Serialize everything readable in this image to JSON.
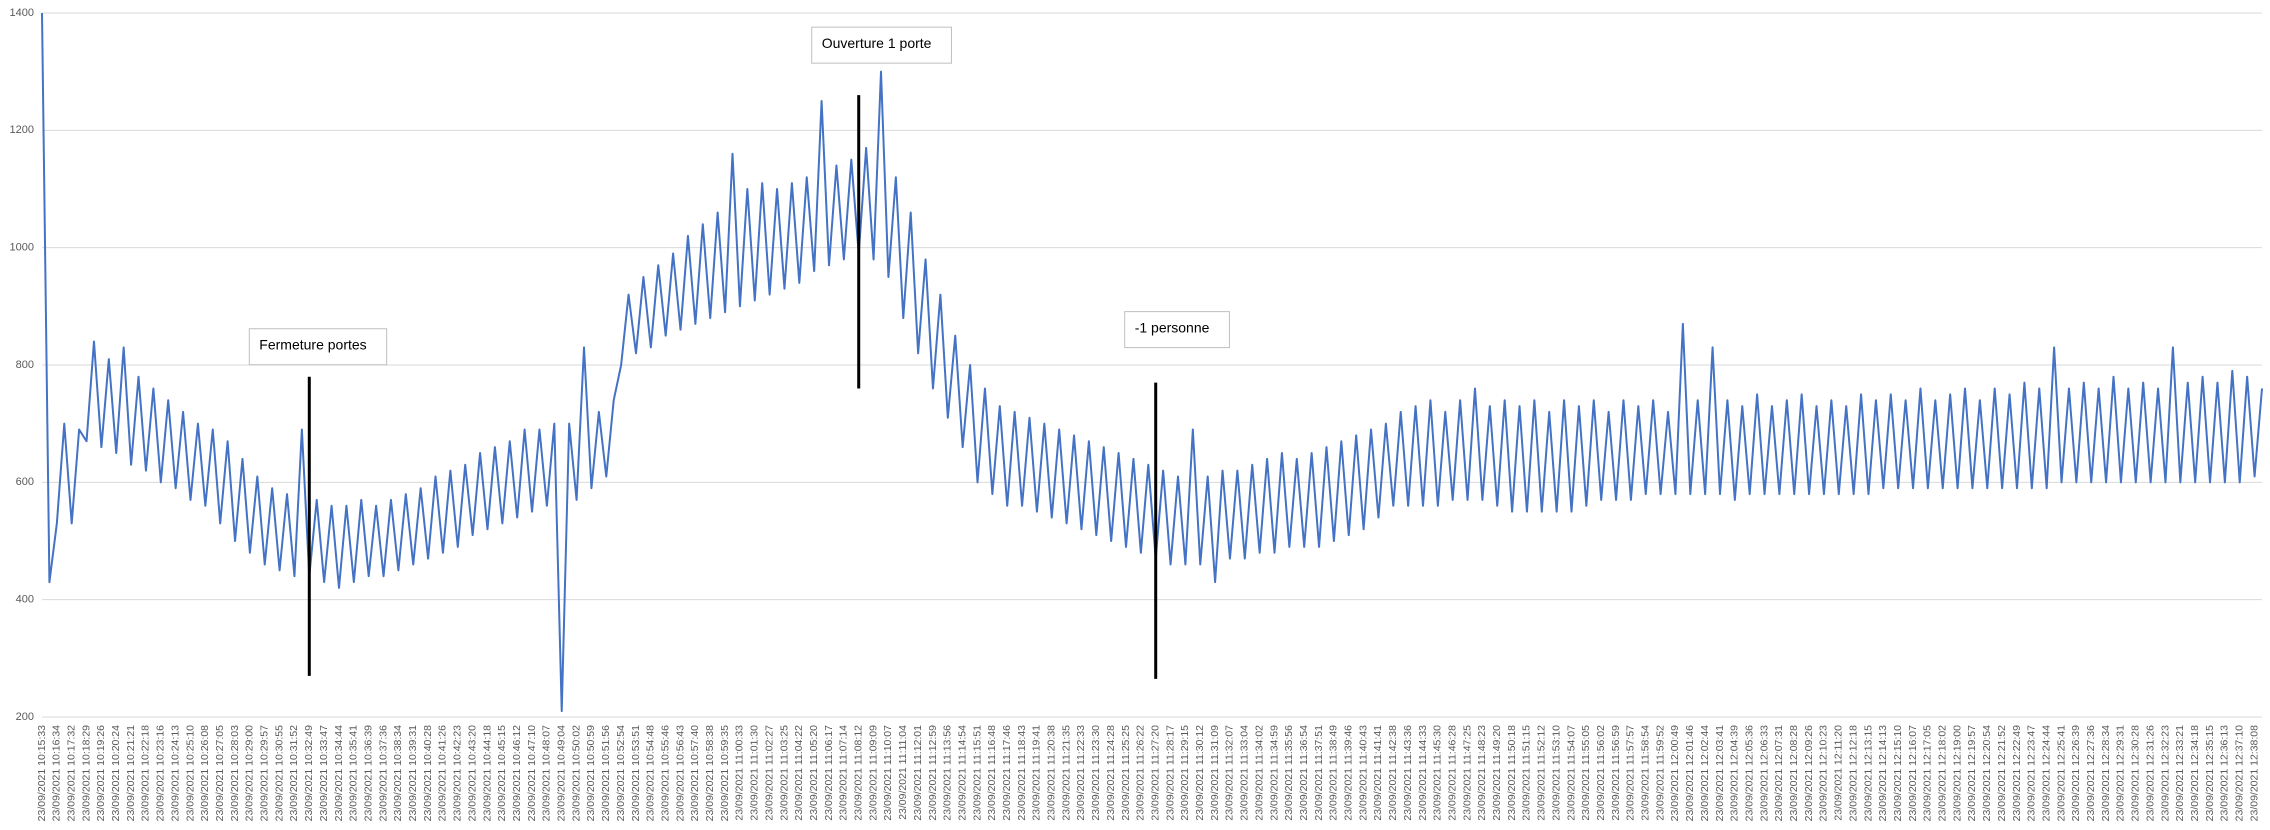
{
  "chart_data": {
    "type": "line",
    "categories": [
      "23/09/2021 10:15:33",
      null,
      "23/09/2021 10:16:34",
      null,
      "23/09/2021 10:17:32",
      null,
      "23/09/2021 10:18:29",
      null,
      "23/09/2021 10:19:26",
      null,
      "23/09/2021 10:20:24",
      null,
      "23/09/2021 10:21:21",
      null,
      "23/09/2021 10:22:18",
      null,
      "23/09/2021 10:23:16",
      null,
      "23/09/2021 10:24:13",
      null,
      "23/09/2021 10:25:10",
      null,
      "23/09/2021 10:26:08",
      null,
      "23/09/2021 10:27:05",
      null,
      "23/09/2021 10:28:03",
      null,
      "23/09/2021 10:29:00",
      null,
      "23/09/2021 10:29:57",
      null,
      "23/09/2021 10:30:55",
      null,
      "23/09/2021 10:31:52",
      null,
      "23/09/2021 10:32:49",
      null,
      "23/09/2021 10:33:47",
      null,
      "23/09/2021 10:34:44",
      null,
      "23/09/2021 10:35:41",
      null,
      "23/09/2021 10:36:39",
      null,
      "23/09/2021 10:37:36",
      null,
      "23/09/2021 10:38:34",
      null,
      "23/09/2021 10:39:31",
      null,
      "23/09/2021 10:40:28",
      null,
      "23/09/2021 10:41:26",
      null,
      "23/09/2021 10:42:23",
      null,
      "23/09/2021 10:43:20",
      null,
      "23/09/2021 10:44:18",
      null,
      "23/09/2021 10:45:15",
      null,
      "23/09/2021 10:46:12",
      null,
      "23/09/2021 10:47:10",
      null,
      "23/09/2021 10:48:07",
      null,
      "23/09/2021 10:49:04",
      null,
      "23/09/2021 10:50:02",
      null,
      "23/09/2021 10:50:59",
      null,
      "23/09/2021 10:51:56",
      null,
      "23/09/2021 10:52:54",
      null,
      "23/09/2021 10:53:51",
      null,
      "23/09/2021 10:54:48",
      null,
      "23/09/2021 10:55:46",
      null,
      "23/09/2021 10:56:43",
      null,
      "23/09/2021 10:57:40",
      null,
      "23/09/2021 10:58:38",
      null,
      "23/09/2021 10:59:35",
      null,
      "23/09/2021 11:00:33",
      null,
      "23/09/2021 11:01:30",
      null,
      "23/09/2021 11:02:27",
      null,
      "23/09/2021 11:03:25",
      null,
      "23/09/2021 11:04:22",
      null,
      "23/09/2021 11:05:20",
      null,
      "23/09/2021 11:06:17",
      null,
      "23/09/2021 11:07:14",
      null,
      "23/09/2021 11:08:12",
      null,
      "23/09/2021 11:09:09",
      null,
      "23/09/2021 11:10:07",
      null,
      "23/09/2021 11:11:04",
      null,
      "23/09/2021 11:12:01",
      null,
      "23/09/2021 11:12:59",
      null,
      "23/09/2021 11:13:56",
      null,
      "23/09/2021 11:14:54",
      null,
      "23/09/2021 11:15:51",
      null,
      "23/09/2021 11:16:48",
      null,
      "23/09/2021 11:17:46",
      null,
      "23/09/2021 11:18:43",
      null,
      "23/09/2021 11:19:41",
      null,
      "23/09/2021 11:20:38",
      null,
      "23/09/2021 11:21:35",
      null,
      "23/09/2021 11:22:33",
      null,
      "23/09/2021 11:23:30",
      null,
      "23/09/2021 11:24:28",
      null,
      "23/09/2021 11:25:25",
      null,
      "23/09/2021 11:26:22",
      null,
      "23/09/2021 11:27:20",
      null,
      "23/09/2021 11:28:17",
      null,
      "23/09/2021 11:29:15",
      null,
      "23/09/2021 11:30:12",
      null,
      "23/09/2021 11:31:09",
      null,
      "23/09/2021 11:32:07",
      null,
      "23/09/2021 11:33:04",
      null,
      "23/09/2021 11:34:02",
      null,
      "23/09/2021 11:34:59",
      null,
      "23/09/2021 11:35:56",
      null,
      "23/09/2021 11:36:54",
      null,
      "23/09/2021 11:37:51",
      null,
      "23/09/2021 11:38:49",
      null,
      "23/09/2021 11:39:46",
      null,
      "23/09/2021 11:40:43",
      null,
      "23/09/2021 11:41:41",
      null,
      "23/09/2021 11:42:38",
      null,
      "23/09/2021 11:43:36",
      null,
      "23/09/2021 11:44:33",
      null,
      "23/09/2021 11:45:30",
      null,
      "23/09/2021 11:46:28",
      null,
      "23/09/2021 11:47:25",
      null,
      "23/09/2021 11:48:23",
      null,
      "23/09/2021 11:49:20",
      null,
      "23/09/2021 11:50:18",
      null,
      "23/09/2021 11:51:15",
      null,
      "23/09/2021 11:52:12",
      null,
      "23/09/2021 11:53:10",
      null,
      "23/09/2021 11:54:07",
      null,
      "23/09/2021 11:55:05",
      null,
      "23/09/2021 11:56:02",
      null,
      "23/09/2021 11:56:59",
      null,
      "23/09/2021 11:57:57",
      null,
      "23/09/2021 11:58:54",
      null,
      "23/09/2021 11:59:52",
      null,
      "23/09/2021 12:00:49",
      null,
      "23/09/2021 12:01:46",
      null,
      "23/09/2021 12:02:44",
      null,
      "23/09/2021 12:03:41",
      null,
      "23/09/2021 12:04:39",
      null,
      "23/09/2021 12:05:36",
      null,
      "23/09/2021 12:06:33",
      null,
      "23/09/2021 12:07:31",
      null,
      "23/09/2021 12:08:28",
      null,
      "23/09/2021 12:09:26",
      null,
      "23/09/2021 12:10:23",
      null,
      "23/09/2021 12:11:20",
      null,
      "23/09/2021 12:12:18",
      null,
      "23/09/2021 12:13:15",
      null,
      "23/09/2021 12:14:13",
      null,
      "23/09/2021 12:15:10",
      null,
      "23/09/2021 12:16:07",
      null,
      "23/09/2021 12:17:05",
      null,
      "23/09/2021 12:18:02",
      null,
      "23/09/2021 12:19:00",
      null,
      "23/09/2021 12:19:57",
      null,
      "23/09/2021 12:20:54",
      null,
      "23/09/2021 12:21:52",
      null,
      "23/09/2021 12:22:49",
      null,
      "23/09/2021 12:23:47",
      null,
      "23/09/2021 12:24:44",
      null,
      "23/09/2021 12:25:41",
      null,
      "23/09/2021 12:26:39",
      null,
      "23/09/2021 12:27:36",
      null,
      "23/09/2021 12:28:34",
      null,
      "23/09/2021 12:29:31",
      null,
      "23/09/2021 12:30:28",
      null,
      "23/09/2021 12:31:26",
      null,
      "23/09/2021 12:32:23",
      null,
      "23/09/2021 12:33:21",
      null,
      "23/09/2021 12:34:18",
      null,
      "23/09/2021 12:35:15",
      null,
      "23/09/2021 12:36:13",
      null,
      "23/09/2021 12:37:10",
      null,
      "23/09/2021 12:38:08",
      null
    ],
    "values": [
      1400,
      430,
      530,
      700,
      530,
      690,
      670,
      840,
      660,
      810,
      650,
      830,
      630,
      780,
      620,
      760,
      600,
      740,
      590,
      720,
      570,
      700,
      560,
      690,
      530,
      670,
      500,
      640,
      480,
      610,
      460,
      590,
      450,
      580,
      440,
      690,
      440,
      570,
      430,
      560,
      420,
      560,
      430,
      570,
      440,
      560,
      440,
      570,
      450,
      580,
      460,
      590,
      470,
      610,
      480,
      620,
      490,
      630,
      510,
      650,
      520,
      660,
      530,
      670,
      540,
      690,
      550,
      690,
      560,
      700,
      210,
      700,
      570,
      830,
      590,
      720,
      610,
      740,
      800,
      920,
      820,
      950,
      830,
      970,
      850,
      990,
      860,
      1020,
      870,
      1040,
      880,
      1060,
      890,
      1160,
      900,
      1100,
      910,
      1110,
      920,
      1100,
      930,
      1110,
      940,
      1120,
      960,
      1250,
      970,
      1140,
      980,
      1150,
      990,
      1170,
      980,
      1300,
      950,
      1120,
      880,
      1060,
      820,
      980,
      760,
      920,
      710,
      850,
      660,
      800,
      600,
      760,
      580,
      730,
      560,
      720,
      560,
      710,
      550,
      700,
      540,
      690,
      530,
      680,
      520,
      670,
      510,
      660,
      500,
      650,
      490,
      640,
      480,
      630,
      470,
      620,
      460,
      610,
      460,
      690,
      460,
      610,
      430,
      620,
      470,
      620,
      470,
      630,
      480,
      640,
      480,
      650,
      490,
      640,
      490,
      650,
      490,
      660,
      500,
      670,
      510,
      680,
      520,
      690,
      540,
      700,
      560,
      720,
      560,
      730,
      560,
      740,
      560,
      720,
      570,
      740,
      570,
      760,
      570,
      730,
      560,
      740,
      550,
      730,
      550,
      740,
      550,
      720,
      550,
      740,
      550,
      730,
      560,
      740,
      570,
      720,
      570,
      740,
      570,
      730,
      580,
      740,
      580,
      720,
      580,
      870,
      580,
      740,
      580,
      830,
      580,
      740,
      570,
      730,
      580,
      750,
      580,
      730,
      580,
      740,
      580,
      750,
      580,
      730,
      580,
      740,
      580,
      730,
      580,
      750,
      580,
      740,
      590,
      750,
      590,
      740,
      590,
      760,
      590,
      740,
      590,
      750,
      590,
      760,
      590,
      740,
      590,
      760,
      590,
      750,
      590,
      770,
      590,
      760,
      590,
      830,
      600,
      760,
      600,
      770,
      600,
      760,
      600,
      780,
      600,
      760,
      600,
      770,
      600,
      760,
      600,
      830,
      600,
      770,
      600,
      780,
      600,
      770,
      600,
      790,
      600,
      780,
      610,
      760
    ],
    "color": "#4472c4",
    "ylim": [
      200,
      1400
    ],
    "yticks": [
      200,
      400,
      600,
      800,
      1000,
      1200,
      1400
    ],
    "grid": true,
    "annotations": [
      {
        "text": "Fermeture portes",
        "at": "23/09/2021 10:32:49",
        "line": [
          270,
          780
        ]
      },
      {
        "text": "Ouverture 1 porte",
        "at": "23/09/2021 11:08:12",
        "line": [
          760,
          1260
        ]
      },
      {
        "text": "-1 personne",
        "at": "23/09/2021 11:27:20",
        "line": [
          265,
          770
        ]
      }
    ]
  }
}
